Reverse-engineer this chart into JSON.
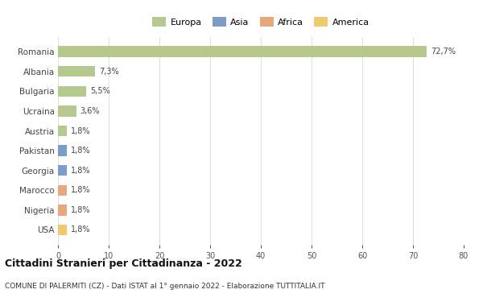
{
  "categories": [
    "Romania",
    "Albania",
    "Bulgaria",
    "Ucraina",
    "Austria",
    "Pakistan",
    "Georgia",
    "Marocco",
    "Nigeria",
    "USA"
  ],
  "values": [
    72.7,
    7.3,
    5.5,
    3.6,
    1.8,
    1.8,
    1.8,
    1.8,
    1.8,
    1.8
  ],
  "labels": [
    "72,7%",
    "7,3%",
    "5,5%",
    "3,6%",
    "1,8%",
    "1,8%",
    "1,8%",
    "1,8%",
    "1,8%",
    "1,8%"
  ],
  "colors": [
    "#b5c98e",
    "#b5c98e",
    "#b5c98e",
    "#b5c98e",
    "#b5c98e",
    "#7b9ec9",
    "#7b9ec9",
    "#e8a87c",
    "#e8a87c",
    "#f0c96e"
  ],
  "legend": [
    {
      "label": "Europa",
      "color": "#b5c98e"
    },
    {
      "label": "Asia",
      "color": "#7b9ec9"
    },
    {
      "label": "Africa",
      "color": "#e8a87c"
    },
    {
      "label": "America",
      "color": "#f0c96e"
    }
  ],
  "title": "Cittadini Stranieri per Cittadinanza - 2022",
  "subtitle": "COMUNE DI PALERMITI (CZ) - Dati ISTAT al 1° gennaio 2022 - Elaborazione TUTTITALIA.IT",
  "xlim": [
    0,
    80
  ],
  "xticks": [
    0,
    10,
    20,
    30,
    40,
    50,
    60,
    70,
    80
  ],
  "background_color": "#ffffff",
  "grid_color": "#e0e0e0"
}
